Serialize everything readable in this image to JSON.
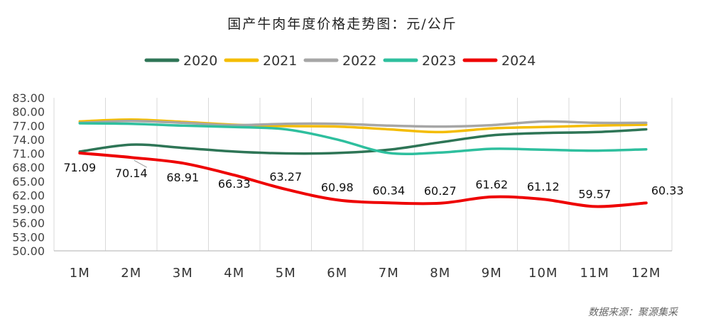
{
  "chart_data": {
    "type": "line",
    "title": "国产牛肉年度价格走势图：元/公斤",
    "categories": [
      "1M",
      "2M",
      "3M",
      "4M",
      "5M",
      "6M",
      "7M",
      "8M",
      "9M",
      "10M",
      "11M",
      "12M"
    ],
    "yticks": [
      "50.00",
      "53.00",
      "56.00",
      "59.00",
      "62.00",
      "65.00",
      "68.00",
      "71.00",
      "74.00",
      "77.00",
      "80.00",
      "83.00"
    ],
    "ylim": [
      50,
      83
    ],
    "series": [
      {
        "name": "2020",
        "color": "#2E7556",
        "values": [
          71.4,
          72.9,
          72.2,
          71.4,
          71.0,
          71.1,
          71.8,
          73.4,
          74.9,
          75.4,
          75.6,
          76.2
        ]
      },
      {
        "name": "2021",
        "color": "#F4BC00",
        "values": [
          77.9,
          78.3,
          77.8,
          77.2,
          76.9,
          76.8,
          76.2,
          75.6,
          76.4,
          76.7,
          77.0,
          77.2
        ]
      },
      {
        "name": "2022",
        "color": "#A6A6A6",
        "values": [
          77.6,
          78.0,
          77.6,
          77.1,
          77.4,
          77.4,
          77.0,
          76.8,
          77.1,
          77.9,
          77.6,
          77.6
        ]
      },
      {
        "name": "2023",
        "color": "#2EBF9E",
        "values": [
          77.5,
          77.4,
          77.0,
          76.7,
          76.2,
          74.0,
          71.1,
          71.2,
          72.0,
          71.8,
          71.6,
          71.9
        ]
      },
      {
        "name": "2024",
        "color": "#EE0000",
        "values": [
          71.09,
          70.14,
          68.91,
          66.33,
          63.27,
          60.98,
          60.34,
          60.27,
          61.62,
          61.12,
          59.57,
          60.33
        ]
      }
    ],
    "data_labels": [
      "71.09",
      "70.14",
      "68.91",
      "66.33",
      "63.27",
      "60.98",
      "60.34",
      "60.27",
      "61.62",
      "61.12",
      "59.57",
      "60.33"
    ],
    "legend_position": "top-center",
    "grid": "vertical",
    "source": "数据来源：聚源集采"
  }
}
